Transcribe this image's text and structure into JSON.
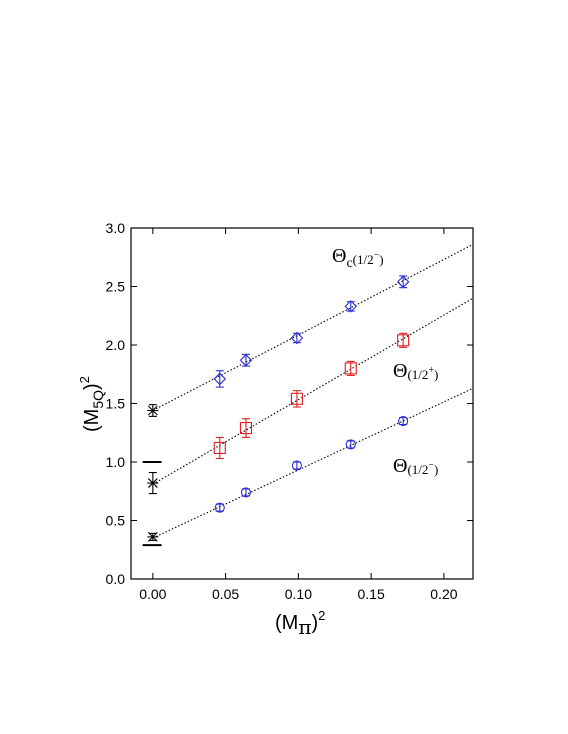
{
  "chart_data": {
    "type": "scatter",
    "xlabel": {
      "base": "(M",
      "sub": "π",
      "close": ")",
      "sup": "2"
    },
    "ylabel": {
      "base": "(M",
      "sub": "5Q",
      "close": ")",
      "sup": "2"
    },
    "xlim": [
      -0.015,
      0.22
    ],
    "ylim": [
      0.0,
      3.0
    ],
    "x_ticks": [
      0.0,
      0.05,
      0.1,
      0.15,
      0.2
    ],
    "x_tick_labels": [
      "0.00",
      "0.05",
      "0.10",
      "0.15",
      "0.20"
    ],
    "y_ticks": [
      0.0,
      0.5,
      1.0,
      1.5,
      2.0,
      2.5,
      3.0
    ],
    "y_tick_labels": [
      "0.0",
      "0.5",
      "1.0",
      "1.5",
      "2.0",
      "2.5",
      "3.0"
    ],
    "grid": false,
    "series": [
      {
        "name": "Θc(1/2−)",
        "label": {
          "main": "Θ",
          "sub": "c",
          "paren": "(1/2",
          "sup": "−",
          "close": ")"
        },
        "marker": "diamond",
        "color": "#2d2dd6",
        "x": [
          0.046,
          0.064,
          0.099,
          0.136,
          0.172
        ],
        "y": [
          1.71,
          1.87,
          2.06,
          2.33,
          2.54
        ],
        "err": [
          0.07,
          0.05,
          0.04,
          0.04,
          0.05
        ],
        "fit": {
          "x": [
            0.0,
            0.22
          ],
          "y": [
            1.44,
            2.86
          ]
        },
        "chiral_extrapolation": {
          "x": 0.0,
          "y": 1.44,
          "err": 0.05
        }
      },
      {
        "name": "Θ(1/2+)",
        "label": {
          "main": "Θ",
          "sub": "",
          "paren": "(1/2",
          "sup": "+",
          "close": ")"
        },
        "marker": "square",
        "color": "#e02020",
        "x": [
          0.046,
          0.064,
          0.099,
          0.136,
          0.172
        ],
        "y": [
          1.12,
          1.29,
          1.54,
          1.8,
          2.04
        ],
        "err": [
          0.09,
          0.08,
          0.07,
          0.06,
          0.06
        ],
        "fit": {
          "x": [
            0.0,
            0.22
          ],
          "y": [
            0.81,
            2.4
          ]
        },
        "chiral_extrapolation": {
          "x": 0.0,
          "y": 0.82,
          "err": 0.09
        }
      },
      {
        "name": "Θ(1/2−)",
        "label": {
          "main": "Θ",
          "sub": "",
          "paren": "(1/2",
          "sup": "−",
          "close": ")"
        },
        "marker": "circle",
        "color": "#2d2dd6",
        "x": [
          0.046,
          0.064,
          0.099,
          0.136,
          0.172
        ],
        "y": [
          0.61,
          0.74,
          0.97,
          1.15,
          1.35
        ],
        "err": [
          0.03,
          0.03,
          0.03,
          0.03,
          0.03
        ],
        "fit": {
          "x": [
            0.0,
            0.22
          ],
          "y": [
            0.35,
            1.63
          ]
        },
        "chiral_extrapolation": {
          "x": 0.0,
          "y": 0.36,
          "err": 0.03
        }
      }
    ],
    "reference_lines": [
      {
        "x": [
          -0.007,
          0.006
        ],
        "y": 1.0
      },
      {
        "x": [
          -0.007,
          0.006
        ],
        "y": 0.29
      }
    ],
    "colors": {
      "axis": "#000000",
      "fit_line": "#000000",
      "extrapolated": "#000000"
    }
  }
}
